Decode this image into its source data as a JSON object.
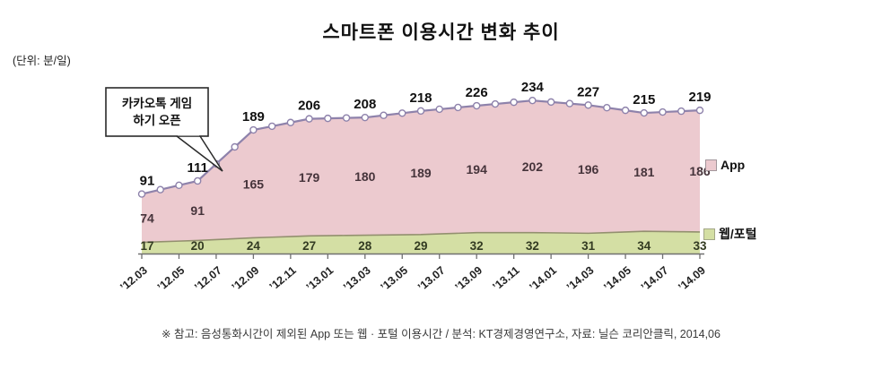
{
  "header": {
    "title": "스마트폰 이용시간 변화 추이",
    "unit_label": "(단위: 분/일)"
  },
  "legend": {
    "app_label": "App",
    "web_label": "웹/포털"
  },
  "annotation": {
    "line1": "카카오톡 게임",
    "line2": "하기 오픈"
  },
  "footnote": "※ 참고: 음성통화시간이 제외된 App 또는 웹 · 포털 이용시간 / 분석: KT경제경영연구소, 자료: 닐슨 코리안클릭, 2014,06",
  "colors": {
    "axis": "#707070",
    "top_label": "#111111",
    "app_label": "#46343b",
    "web_label": "#333b22",
    "tick_label": "#222222",
    "callout_border": "#2a2a2a",
    "legend_app_border": "#a2969b",
    "legend_web_border": "#a3a687"
  },
  "chart_data": {
    "type": "area",
    "stacked": true,
    "title": "스마트폰 이용시간 변화 추이",
    "unit": "분/일",
    "x_tick_labels": [
      "’12.03",
      "’12.05",
      "’12.07",
      "’12.09",
      "’12.11",
      "’13.01",
      "’13.03",
      "’13.05",
      "’13.07",
      "’13.09",
      "’13.11",
      "’14.01",
      "’14.03",
      "’14.05",
      "’14.07",
      "’14.09"
    ],
    "labeled_months": [
      "’12.03",
      "’12.06",
      "’12.09",
      "’12.12",
      "’13.03",
      "’13.06",
      "’13.09",
      "’13.12",
      "’14.03",
      "’14.06",
      "’14.09"
    ],
    "series": [
      {
        "name": "App",
        "values": [
          74,
          91,
          165,
          179,
          180,
          189,
          194,
          202,
          196,
          181,
          186
        ],
        "fill": "#eccacf",
        "line": "#8e82ab"
      },
      {
        "name": "웹/포털",
        "values": [
          17,
          20,
          24,
          27,
          28,
          29,
          32,
          32,
          31,
          34,
          33
        ],
        "fill": "#d4dfa4",
        "line": "#93906f"
      }
    ],
    "total_labels": [
      91,
      111,
      189,
      206,
      208,
      218,
      226,
      234,
      227,
      215,
      219
    ],
    "annotation": {
      "text": "카카오톡 게임 하기 오픈",
      "points_to": "’12.07"
    },
    "ylim": [
      0,
      250
    ],
    "legend_position": "right",
    "layout_note": "monthly data markers; value labels every 3 months; x ticks every 2 months"
  }
}
